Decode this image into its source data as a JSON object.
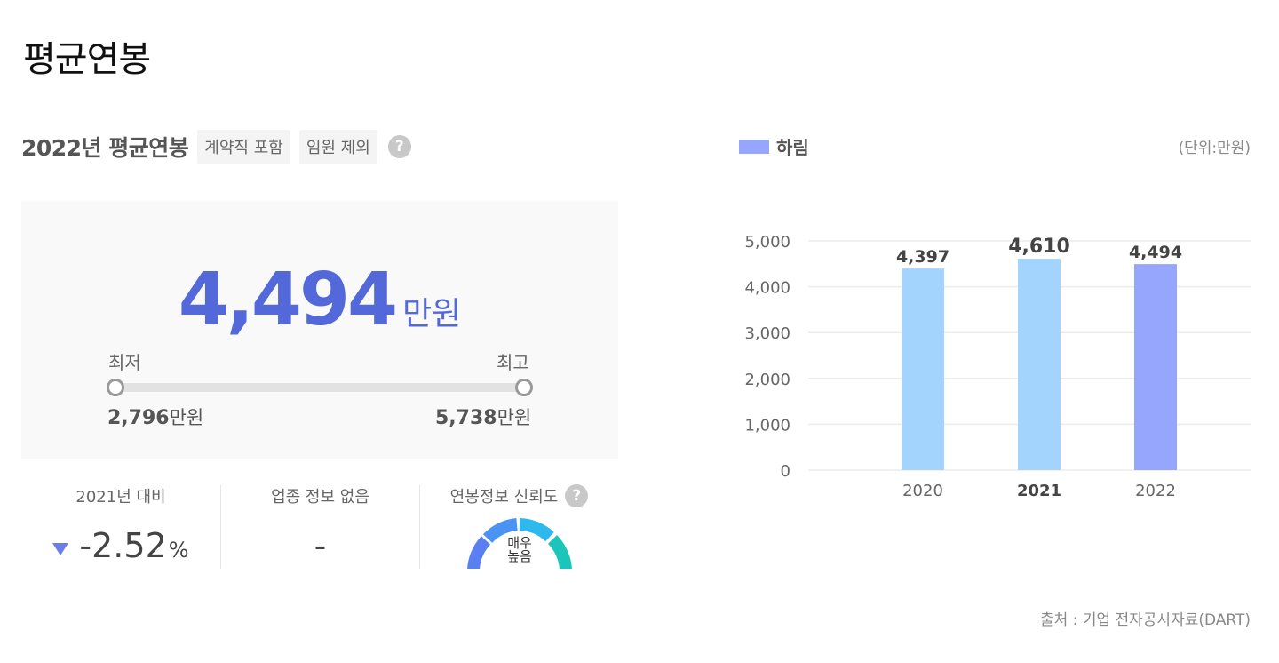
{
  "page": {
    "title": "평균연봉"
  },
  "summary": {
    "title": "2022년 평균연봉",
    "tag_contract": "계약직 포함",
    "tag_exec": "임원 제외",
    "help": "?",
    "average_value": "4,494",
    "average_unit": "만원",
    "min_label": "최저",
    "max_label": "최고",
    "min_value": "2,796",
    "max_value": "5,738",
    "value_unit": "만원"
  },
  "stats": {
    "yoy_label": "2021년 대비",
    "yoy_value": "-2.52",
    "yoy_pct": "%",
    "industry_label": "업종 정보 없음",
    "industry_value": "-",
    "reliability_label": "연봉정보 신뢰도",
    "reliability_line1": "매우",
    "reliability_line2": "높음"
  },
  "chart_legend": {
    "company": "하림",
    "unit_note": "(단위:만원)"
  },
  "source": "출처 : 기업 전자공시자료(DART)",
  "colors": {
    "accent": "#5368d9",
    "bar_past": "#a3d4fe",
    "bar_current": "#95a6fc",
    "down_arrow": "#6a7de8"
  },
  "chart_data": {
    "type": "bar",
    "categories": [
      "2020",
      "2021",
      "2022"
    ],
    "values": [
      4397,
      4610,
      4494
    ],
    "value_labels": [
      "4,397",
      "4,610",
      "4,494"
    ],
    "highlight_category": "2021",
    "current_category": "2022",
    "series": [
      {
        "name": "하림",
        "values": [
          4397,
          4610,
          4494
        ]
      }
    ],
    "ylim": [
      0,
      5000
    ],
    "yticks": [
      0,
      1000,
      2000,
      3000,
      4000,
      5000
    ],
    "ytick_labels": [
      "0",
      "1,000",
      "2,000",
      "3,000",
      "4,000",
      "5,000"
    ],
    "title": "",
    "xlabel": "",
    "ylabel": "",
    "grid": true,
    "legend": "top-left"
  }
}
